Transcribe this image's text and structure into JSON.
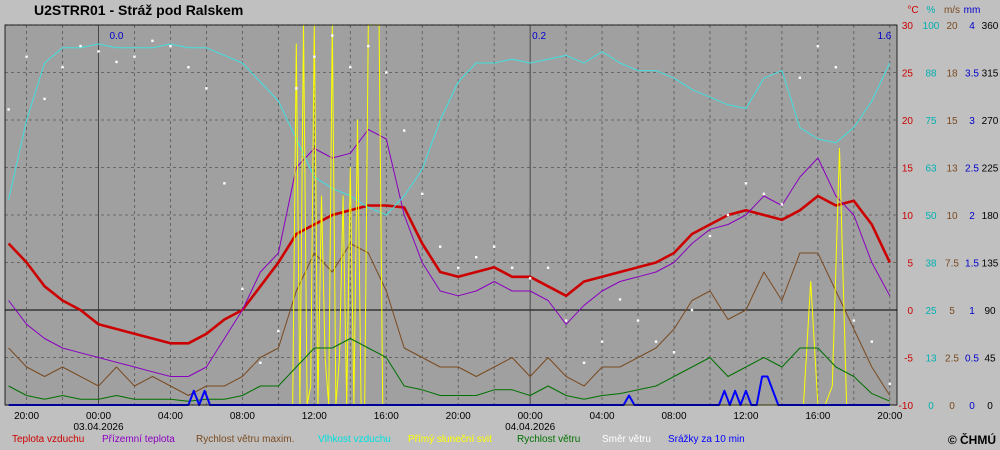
{
  "chart_data": {
    "type": "line",
    "title": "U2STRR01 - Stráž pod Ralskem",
    "copyright": "© ČHMÚ",
    "xaxis": {
      "tick_labels": [
        "20:00",
        "00:00",
        "04:00",
        "08:00",
        "12:00",
        "16:00",
        "20:00",
        "00:00",
        "04:00",
        "08:00",
        "12:00",
        "16:00",
        "20:00"
      ],
      "tick_hours": [
        0,
        4,
        8,
        12,
        16,
        20,
        24,
        28,
        32,
        36,
        40,
        44,
        48
      ],
      "date_labels": [
        {
          "hour": 4,
          "label": "03.04.2026"
        },
        {
          "hour": 28,
          "label": "04.04.2026"
        }
      ],
      "range_hours": [
        -1.2,
        48.4
      ]
    },
    "y_axes": [
      {
        "unit": "°C",
        "color": "#cc0000",
        "ticks": [
          "30",
          "25",
          "20",
          "15",
          "10",
          "5",
          "0",
          "-5",
          "-10"
        ],
        "range": [
          -10,
          30
        ]
      },
      {
        "unit": "%",
        "color": "#00b0b0",
        "ticks": [
          "100",
          "88",
          "75",
          "63",
          "50",
          "38",
          "25",
          "13",
          "0"
        ],
        "range": [
          0,
          100
        ]
      },
      {
        "unit": "m/s",
        "color": "#7a4a20",
        "ticks": [
          "20",
          "18",
          "15",
          "13",
          "10",
          "7.5",
          "5",
          "2.5",
          "0"
        ],
        "range": [
          0,
          20
        ]
      },
      {
        "unit": "mm",
        "color": "#0000cc",
        "ticks": [
          "4",
          "3.5",
          "3",
          "2.5",
          "2",
          "1.5",
          "1",
          "0.5",
          "0"
        ],
        "range": [
          0,
          4
        ]
      },
      {
        "unit": "",
        "color": "#000000",
        "ticks": [
          "360",
          "315",
          "270",
          "225",
          "180",
          "135",
          "90",
          "45",
          "0"
        ],
        "range": [
          0,
          360
        ]
      }
    ],
    "precip_daily_labels": [
      {
        "hour": 5,
        "label": "0.0"
      },
      {
        "hour": 28.5,
        "label": "0.2"
      },
      {
        "hour": 47.7,
        "label": "1.6"
      }
    ],
    "series": [
      {
        "name": "Teplota vzduchu",
        "axis": 0,
        "color": "#cc0000",
        "x": [
          -1,
          0,
          1,
          2,
          3,
          4,
          5,
          6,
          7,
          8,
          9,
          10,
          11,
          12,
          13,
          14,
          15,
          16,
          17,
          18,
          19,
          20,
          21,
          22,
          23,
          24,
          25,
          26,
          27,
          28,
          29,
          30,
          31,
          32,
          33,
          34,
          35,
          36,
          37,
          38,
          39,
          40,
          41,
          42,
          43,
          44,
          45,
          46,
          47,
          48
        ],
        "y": [
          7,
          5,
          2.5,
          1,
          0,
          -1.5,
          -2,
          -2.5,
          -3,
          -3.5,
          -3.5,
          -2.5,
          -1,
          0,
          2.5,
          5,
          8,
          9,
          10,
          10.5,
          11,
          11,
          10.8,
          7,
          4,
          3.5,
          4,
          4.5,
          3.5,
          3.5,
          2.5,
          1.5,
          3,
          3.5,
          4,
          4.5,
          5,
          6,
          8,
          9,
          10,
          10.5,
          10,
          9.5,
          10.5,
          12,
          11,
          11.5,
          9,
          5
        ]
      },
      {
        "name": "Přízemní teplota",
        "axis": 0,
        "color": "#8a00c0",
        "x": [
          -1,
          0,
          1,
          2,
          3,
          4,
          5,
          6,
          7,
          8,
          9,
          10,
          11,
          12,
          13,
          14,
          15,
          16,
          17,
          18,
          19,
          20,
          21,
          22,
          23,
          24,
          25,
          26,
          27,
          28,
          29,
          30,
          31,
          32,
          33,
          34,
          35,
          36,
          37,
          38,
          39,
          40,
          41,
          42,
          43,
          44,
          45,
          46,
          47,
          48
        ],
        "y": [
          1,
          -1.5,
          -3,
          -4,
          -4.5,
          -5,
          -5.5,
          -6,
          -6.5,
          -7,
          -7,
          -6,
          -3,
          0,
          4,
          6,
          15,
          17,
          16,
          16.5,
          19,
          18,
          10,
          5,
          2,
          1.5,
          2,
          3,
          2,
          2,
          1,
          -1.5,
          0.5,
          2,
          3,
          3.5,
          4,
          5,
          7,
          8.5,
          9,
          10,
          12,
          11,
          14,
          16,
          12,
          10,
          5,
          1.5
        ]
      },
      {
        "name": "Rychlost větru maxim.",
        "axis": 2,
        "color": "#7a4a20",
        "x": [
          -1,
          0,
          1,
          2,
          3,
          4,
          5,
          6,
          7,
          8,
          9,
          10,
          11,
          12,
          13,
          14,
          15,
          16,
          17,
          18,
          19,
          20,
          21,
          22,
          23,
          24,
          25,
          26,
          27,
          28,
          29,
          30,
          31,
          32,
          33,
          34,
          35,
          36,
          37,
          38,
          39,
          40,
          41,
          42,
          43,
          44,
          45,
          46,
          47,
          48
        ],
        "y": [
          3,
          2,
          1.5,
          2,
          1.5,
          1,
          2,
          1,
          1.5,
          1,
          0.5,
          1,
          1,
          1.5,
          2.5,
          3,
          6,
          8,
          7,
          8.5,
          8,
          6,
          3,
          2.5,
          2,
          2,
          1.5,
          2,
          2.5,
          1.5,
          2.5,
          1.5,
          1,
          2,
          2,
          2.5,
          3,
          4,
          5.5,
          6,
          4.5,
          5,
          7,
          5.5,
          8,
          8,
          6,
          4,
          2,
          0.5
        ]
      },
      {
        "name": "Vlhkost vzduchu",
        "axis": 1,
        "color": "#40e0e0",
        "x": [
          -1,
          0,
          1,
          2,
          3,
          4,
          5,
          6,
          7,
          8,
          9,
          10,
          11,
          12,
          13,
          14,
          15,
          16,
          17,
          18,
          19,
          20,
          21,
          22,
          23,
          24,
          25,
          26,
          27,
          28,
          29,
          30,
          31,
          32,
          33,
          34,
          35,
          36,
          37,
          38,
          39,
          40,
          41,
          42,
          43,
          44,
          45,
          46,
          47,
          48
        ],
        "y": [
          54,
          75,
          90,
          94,
          94,
          95,
          94,
          94,
          94,
          95,
          94,
          94,
          92,
          90,
          85,
          80,
          70,
          60,
          57,
          55,
          52,
          50,
          55,
          62,
          75,
          85,
          90,
          90,
          91,
          90,
          91,
          92,
          90,
          93,
          90,
          88,
          88,
          86,
          83,
          81,
          79,
          78,
          86,
          88,
          73,
          70,
          69,
          73,
          80,
          90
        ]
      },
      {
        "name": "Přímý sluneční svit",
        "axis": 0,
        "color": "#ffff00",
        "x": [
          14.8,
          15,
          15.2,
          15.4,
          15.6,
          15.8,
          16,
          16.2,
          16.4,
          16.6,
          16.8,
          17,
          17.2,
          17.4,
          17.6,
          17.8,
          18,
          18.2,
          18.4,
          18.6,
          18.8,
          19,
          19.2,
          19.4,
          19.6,
          19.8,
          20,
          20.2,
          20.4,
          20.6,
          20.8,
          21,
          42.8,
          43.2,
          43.6,
          44,
          44.4,
          44.8,
          45.2,
          45.6,
          46
        ],
        "y": [
          -10,
          28,
          -10,
          30,
          -10,
          -8,
          30,
          -10,
          12,
          -5,
          -10,
          30,
          -10,
          -5,
          12,
          -10,
          15,
          -10,
          20,
          -10,
          -10,
          30,
          30,
          30,
          30,
          -10,
          -10,
          -10,
          -10,
          -10,
          -10,
          -10,
          -10,
          -10,
          3,
          -10,
          -10,
          -8,
          17,
          -10,
          -10
        ]
      },
      {
        "name": "Rychlost větru",
        "axis": 2,
        "color": "#007000",
        "x": [
          -1,
          0,
          1,
          2,
          3,
          4,
          5,
          6,
          7,
          8,
          9,
          10,
          11,
          12,
          13,
          14,
          15,
          16,
          17,
          18,
          19,
          20,
          21,
          22,
          23,
          24,
          25,
          26,
          27,
          28,
          29,
          30,
          31,
          32,
          33,
          34,
          35,
          36,
          37,
          38,
          39,
          40,
          41,
          42,
          43,
          44,
          45,
          46,
          47,
          48
        ],
        "y": [
          1,
          0.5,
          0.3,
          0.5,
          0.3,
          0.3,
          0.5,
          0.3,
          0.3,
          0.3,
          0.2,
          0.3,
          0.3,
          0.5,
          1,
          1,
          2,
          3,
          3,
          3.5,
          3,
          2.5,
          1,
          0.8,
          0.5,
          0.5,
          0.5,
          0.8,
          0.8,
          0.5,
          1,
          0.5,
          0.3,
          0.5,
          0.6,
          0.8,
          1,
          1.5,
          2,
          2.5,
          1.5,
          2,
          2.5,
          2,
          3,
          3,
          2,
          1.5,
          0.6,
          0.2
        ]
      },
      {
        "name": "Směr větru",
        "axis": 4,
        "color": "#ffffff",
        "x": [
          -1,
          0,
          1,
          2,
          3,
          4,
          5,
          6,
          7,
          8,
          9,
          10,
          11,
          12,
          13,
          14,
          15,
          16,
          17,
          18,
          19,
          20,
          21,
          22,
          23,
          24,
          25,
          26,
          27,
          28,
          29,
          30,
          31,
          32,
          33,
          34,
          35,
          36,
          37,
          38,
          39,
          40,
          41,
          42,
          43,
          44,
          45,
          46,
          47,
          48
        ],
        "y": [
          280,
          330,
          290,
          320,
          340,
          335,
          325,
          330,
          345,
          340,
          320,
          300,
          210,
          110,
          40,
          70,
          300,
          330,
          350,
          320,
          340,
          315,
          260,
          200,
          150,
          130,
          140,
          150,
          130,
          120,
          130,
          80,
          40,
          60,
          100,
          80,
          60,
          50,
          90,
          160,
          180,
          210,
          200,
          190,
          310,
          340,
          320,
          80,
          60,
          20
        ]
      },
      {
        "name": "Srážky za 10 min",
        "axis": 3,
        "color": "#0000ff",
        "x": [
          -1,
          9,
          9.3,
          9.6,
          9.9,
          10.2,
          31,
          33.2,
          33.5,
          33.8,
          34,
          38.5,
          38.8,
          39.1,
          39.4,
          39.7,
          40,
          40.3,
          40.6,
          40.9,
          41.2,
          41.8,
          42.2,
          48
        ],
        "y": [
          0,
          0,
          0.15,
          0,
          0.15,
          0,
          0,
          0,
          0.1,
          0,
          0,
          0,
          0.15,
          0,
          0.15,
          0,
          0.15,
          0,
          0,
          0.3,
          0.3,
          0,
          0,
          0
        ]
      }
    ]
  }
}
